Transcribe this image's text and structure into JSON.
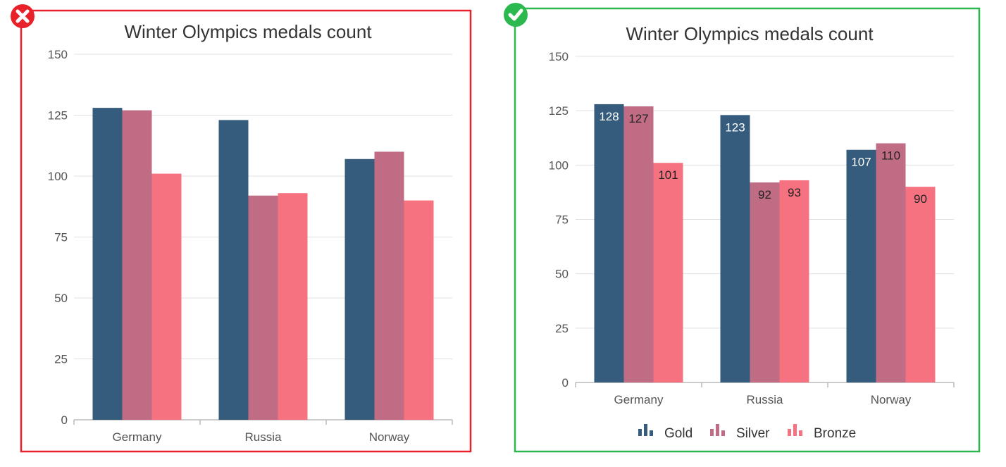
{
  "chart_data": [
    {
      "panel": "wrong",
      "status_icon": "cross-icon",
      "frame_color": "#e8212b",
      "type": "bar",
      "title": "Winter Olympics medals count",
      "categories": [
        "Germany",
        "Russia",
        "Norway"
      ],
      "series": [
        {
          "name": "Gold",
          "color": "#355C7D",
          "values": [
            128,
            123,
            107
          ]
        },
        {
          "name": "Silver",
          "color": "#C06C84",
          "values": [
            127,
            92,
            110
          ]
        },
        {
          "name": "Bronze",
          "color": "#F67280",
          "values": [
            101,
            93,
            90
          ]
        }
      ],
      "yticks": [
        "0",
        "25",
        "50",
        "75",
        "100",
        "125",
        "150"
      ],
      "ylim": [
        0,
        150
      ],
      "grid": true,
      "data_labels": false,
      "legend": "none"
    },
    {
      "panel": "correct",
      "status_icon": "check-icon",
      "frame_color": "#2bb84f",
      "type": "bar",
      "title": "Winter Olympics medals count",
      "categories": [
        "Germany",
        "Russia",
        "Norway"
      ],
      "series": [
        {
          "name": "Gold",
          "color": "#355C7D",
          "values": [
            128,
            123,
            107
          ]
        },
        {
          "name": "Silver",
          "color": "#C06C84",
          "values": [
            127,
            92,
            110
          ]
        },
        {
          "name": "Bronze",
          "color": "#F67280",
          "values": [
            101,
            93,
            90
          ]
        }
      ],
      "yticks": [
        "0",
        "25",
        "50",
        "75",
        "100",
        "125",
        "150"
      ],
      "ylim": [
        0,
        150
      ],
      "grid": true,
      "data_labels": true,
      "legend": "bottom"
    }
  ]
}
